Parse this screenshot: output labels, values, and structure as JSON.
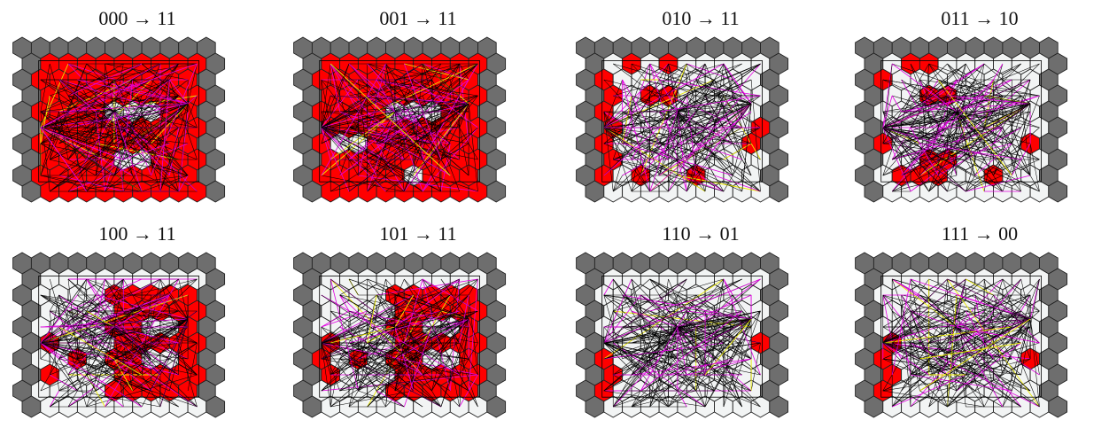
{
  "figure": {
    "panels": [
      {
        "label": "000 → 11",
        "pattern": "full"
      },
      {
        "label": "001 → 11",
        "pattern": "full-minus"
      },
      {
        "label": "010 → 11",
        "pattern": "left-top"
      },
      {
        "label": "011 → 10",
        "pattern": "left-top-small"
      },
      {
        "label": "100 → 11",
        "pattern": "right-center"
      },
      {
        "label": "101 → 11",
        "pattern": "right-center-left"
      },
      {
        "label": "110 → 01",
        "pattern": "left-few"
      },
      {
        "label": "111 → 00",
        "pattern": "left-few-right"
      }
    ],
    "colors": {
      "border_hex": "#6e6e6e",
      "inner_hex": "#f2f4f4",
      "active_hex": "#ff0000",
      "edge_black": "#000000",
      "edge_magenta": "#e000e0",
      "edge_yellow": "#e8e800"
    }
  }
}
